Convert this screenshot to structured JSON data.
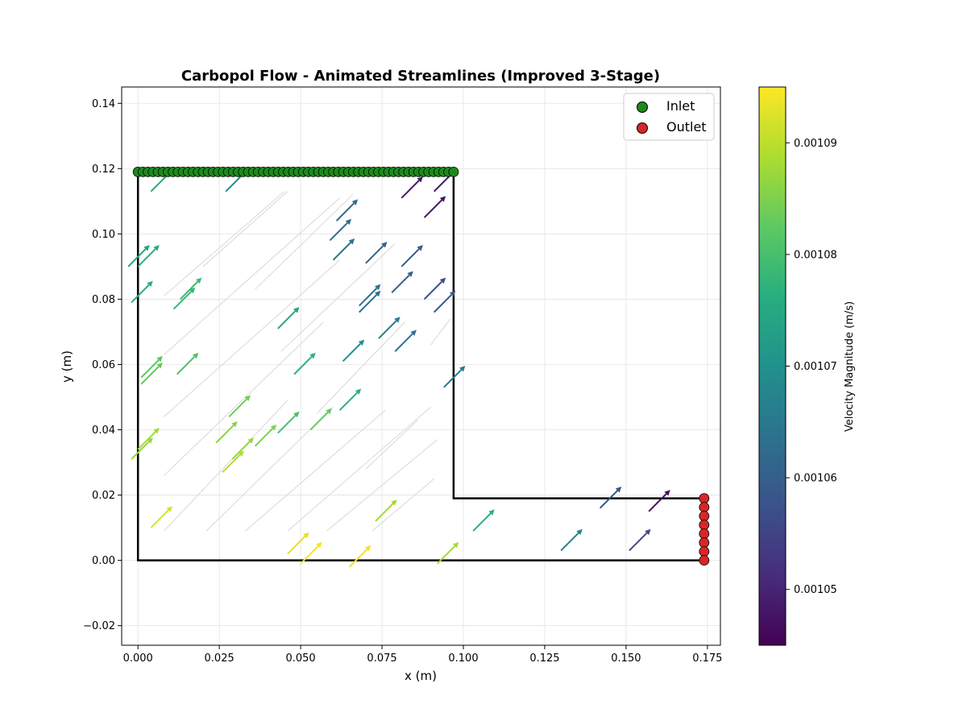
{
  "chart_data": {
    "type": "quiver",
    "title": "Carbopol Flow - Animated Streamlines (Improved 3-Stage)",
    "xlabel": "x (m)",
    "ylabel": "y (m)",
    "xlim": [
      -0.005,
      0.179
    ],
    "ylim": [
      -0.026,
      0.145
    ],
    "xticks": [
      0.0,
      0.025,
      0.05,
      0.075,
      0.1,
      0.125,
      0.15,
      0.175
    ],
    "xtick_labels": [
      "0.000",
      "0.025",
      "0.050",
      "0.075",
      "0.100",
      "0.125",
      "0.150",
      "0.175"
    ],
    "yticks": [
      -0.02,
      0.0,
      0.02,
      0.04,
      0.06,
      0.08,
      0.1,
      0.12,
      0.14
    ],
    "ytick_labels": [
      "−0.02",
      "0.00",
      "0.02",
      "0.04",
      "0.06",
      "0.08",
      "0.10",
      "0.12",
      "0.14"
    ],
    "grid": true,
    "legend_position": "top-right",
    "legend": [
      {
        "label": "Inlet",
        "color": "#1b8a1b"
      },
      {
        "label": "Outlet",
        "color": "#d62728"
      }
    ],
    "colorbar": {
      "label": "Velocity Magnitude (m/s)",
      "vmin": 0.001045,
      "vmax": 0.001095,
      "ticks": [
        0.00105,
        0.00106,
        0.00107,
        0.00108,
        0.00109
      ],
      "tick_labels": [
        "0.00105",
        "0.00106",
        "0.00107",
        "0.00108",
        "0.00109"
      ]
    },
    "geometry_outline": [
      [
        0.0,
        0.119
      ],
      [
        0.0,
        0.0
      ],
      [
        0.174,
        0.0
      ],
      [
        0.174,
        0.019
      ],
      [
        0.097,
        0.019
      ],
      [
        0.097,
        0.119
      ]
    ],
    "inlet": {
      "y": 0.119,
      "x_start": 0.0,
      "x_end": 0.097,
      "count": 64
    },
    "outlet": {
      "x": 0.174,
      "y_start": 0.0,
      "y_end": 0.019,
      "count": 8
    },
    "arrow_dx": 0.0066,
    "arrow_dy": 0.0066,
    "background_streamlines": [
      [
        0.008,
        0.009,
        0.046,
        0.049
      ],
      [
        0.021,
        0.009,
        0.06,
        0.047
      ],
      [
        0.033,
        0.009,
        0.076,
        0.046
      ],
      [
        0.046,
        0.009,
        0.09,
        0.047
      ],
      [
        0.058,
        0.009,
        0.092,
        0.037
      ],
      [
        0.072,
        0.009,
        0.091,
        0.025
      ],
      [
        0.008,
        0.026,
        0.057,
        0.073
      ],
      [
        0.008,
        0.044,
        0.062,
        0.092
      ],
      [
        0.008,
        0.063,
        0.062,
        0.111
      ],
      [
        0.008,
        0.081,
        0.045,
        0.113
      ],
      [
        0.02,
        0.09,
        0.046,
        0.113
      ],
      [
        0.036,
        0.083,
        0.066,
        0.112
      ],
      [
        0.044,
        0.064,
        0.079,
        0.097
      ],
      [
        0.055,
        0.045,
        0.082,
        0.073
      ],
      [
        0.07,
        0.028,
        0.086,
        0.043
      ],
      [
        0.09,
        0.066,
        0.096,
        0.074
      ]
    ],
    "vectors": [
      {
        "x": 0.004,
        "y": 0.113,
        "speed": 0.001075
      },
      {
        "x": 0.027,
        "y": 0.113,
        "speed": 0.001069
      },
      {
        "x": 0.081,
        "y": 0.111,
        "speed": 0.001049
      },
      {
        "x": 0.091,
        "y": 0.113,
        "speed": 0.001048
      },
      {
        "x": 0.088,
        "y": 0.105,
        "speed": 0.001048
      },
      {
        "x": 0.061,
        "y": 0.104,
        "speed": 0.001062
      },
      {
        "x": 0.059,
        "y": 0.098,
        "speed": 0.001063
      },
      {
        "x": 0.06,
        "y": 0.092,
        "speed": 0.001064
      },
      {
        "x": 0.07,
        "y": 0.091,
        "speed": 0.001061
      },
      {
        "x": 0.081,
        "y": 0.09,
        "speed": 0.001059
      },
      {
        "x": -0.003,
        "y": 0.09,
        "speed": 0.001074
      },
      {
        "x": 0.0,
        "y": 0.09,
        "speed": 0.001076
      },
      {
        "x": 0.078,
        "y": 0.082,
        "speed": 0.00106
      },
      {
        "x": 0.088,
        "y": 0.08,
        "speed": 0.001057
      },
      {
        "x": 0.091,
        "y": 0.076,
        "speed": 0.001059
      },
      {
        "x": -0.002,
        "y": 0.079,
        "speed": 0.001076
      },
      {
        "x": 0.013,
        "y": 0.08,
        "speed": 0.001079
      },
      {
        "x": 0.011,
        "y": 0.077,
        "speed": 0.001078
      },
      {
        "x": 0.068,
        "y": 0.078,
        "speed": 0.001064
      },
      {
        "x": 0.068,
        "y": 0.076,
        "speed": 0.001063
      },
      {
        "x": 0.043,
        "y": 0.071,
        "speed": 0.001074
      },
      {
        "x": 0.074,
        "y": 0.068,
        "speed": 0.001066
      },
      {
        "x": 0.079,
        "y": 0.064,
        "speed": 0.001064
      },
      {
        "x": 0.063,
        "y": 0.061,
        "speed": 0.00107
      },
      {
        "x": 0.001,
        "y": 0.054,
        "speed": 0.001083
      },
      {
        "x": 0.001,
        "y": 0.056,
        "speed": 0.001082
      },
      {
        "x": 0.012,
        "y": 0.057,
        "speed": 0.001081
      },
      {
        "x": 0.048,
        "y": 0.057,
        "speed": 0.001077
      },
      {
        "x": 0.094,
        "y": 0.053,
        "speed": 0.001065
      },
      {
        "x": 0.028,
        "y": 0.044,
        "speed": 0.001084
      },
      {
        "x": 0.062,
        "y": 0.046,
        "speed": 0.001077
      },
      {
        "x": 0.053,
        "y": 0.04,
        "speed": 0.001083
      },
      {
        "x": 0.043,
        "y": 0.039,
        "speed": 0.00108
      },
      {
        "x": 0.036,
        "y": 0.035,
        "speed": 0.001085
      },
      {
        "x": -0.002,
        "y": 0.031,
        "speed": 0.001087
      },
      {
        "x": 0.0,
        "y": 0.034,
        "speed": 0.001088
      },
      {
        "x": 0.024,
        "y": 0.036,
        "speed": 0.001086
      },
      {
        "x": 0.029,
        "y": 0.031,
        "speed": 0.001087
      },
      {
        "x": 0.026,
        "y": 0.027,
        "speed": 0.001089
      },
      {
        "x": 0.004,
        "y": 0.01,
        "speed": 0.001092
      },
      {
        "x": 0.073,
        "y": 0.012,
        "speed": 0.001088
      },
      {
        "x": 0.103,
        "y": 0.009,
        "speed": 0.001077
      },
      {
        "x": 0.046,
        "y": 0.002,
        "speed": 0.001093
      },
      {
        "x": 0.05,
        "y": -0.001,
        "speed": 0.001094
      },
      {
        "x": 0.065,
        "y": -0.002,
        "speed": 0.001094
      },
      {
        "x": 0.092,
        "y": -0.001,
        "speed": 0.001088
      },
      {
        "x": 0.13,
        "y": 0.003,
        "speed": 0.001067
      },
      {
        "x": 0.151,
        "y": 0.003,
        "speed": 0.001056
      },
      {
        "x": 0.142,
        "y": 0.016,
        "speed": 0.001058
      },
      {
        "x": 0.157,
        "y": 0.015,
        "speed": 0.001047
      }
    ]
  }
}
